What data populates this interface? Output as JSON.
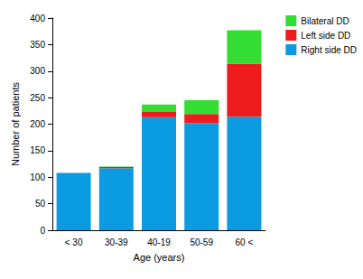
{
  "chart_data": {
    "type": "bar",
    "stacked": true,
    "x_label": "Age (years)",
    "y_label": "Number of patients",
    "categories": [
      "< 30",
      "30-39",
      "40-19",
      "50-59",
      "60 <"
    ],
    "series": [
      {
        "name": "Right side DD",
        "color": "#0a9be0",
        "values": [
          108,
          117,
          213,
          202,
          214
        ]
      },
      {
        "name": "Left side DD",
        "color": "#ee1c1c",
        "values": [
          0,
          2,
          10,
          17,
          100
        ]
      },
      {
        "name": "Bilateral DD",
        "color": "#33dd33",
        "values": [
          0,
          1,
          14,
          26,
          63
        ]
      }
    ],
    "ylim": [
      0,
      400
    ],
    "yticks": [
      0,
      50,
      100,
      150,
      200,
      250,
      300,
      350,
      400
    ],
    "grid": false,
    "legend": "upper right"
  }
}
